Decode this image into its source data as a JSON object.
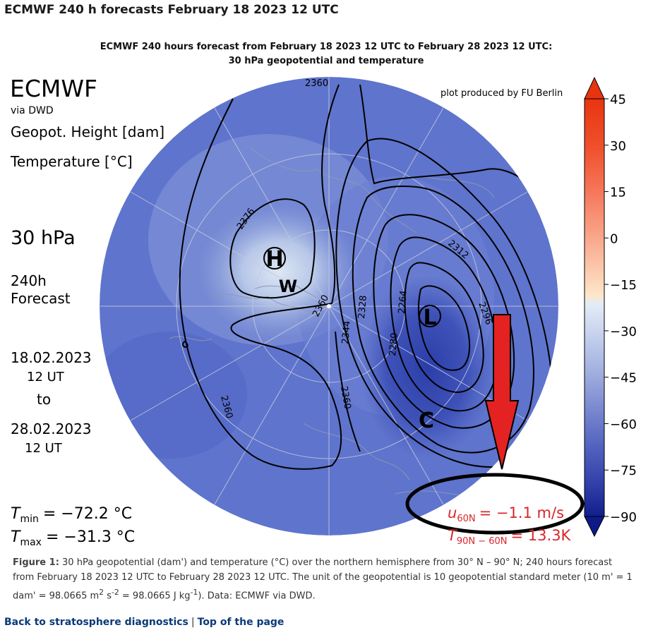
{
  "page_title": "ECMWF 240 h forecasts February 18 2023 12 UTC",
  "figure": {
    "subtitle_line1": "ECMWF 240 hours forecast from February 18 2023 12 UTC to February 28 2023 12 UTC:",
    "subtitle_line2": "30 hPa geopotential and temperature",
    "producer": "ECMWF",
    "via": "via DWD",
    "credit": "plot produced by FU Berlin",
    "var1": "Geopot. Height [dam]",
    "var2": "Temperature [°C]",
    "level": "30 hPa",
    "lead1": "240h",
    "lead2": "Forecast",
    "init_date": "18.02.2023",
    "init_time": "12 UT",
    "to": "to",
    "valid_date": "28.02.2023",
    "valid_time": "12 UT",
    "tmin_label": "T",
    "tmin_sub": "min",
    "tmin_value": "= −72.2 °C",
    "tmax_label": "T",
    "tmax_sub": "max",
    "tmax_value": "= −31.3 °C",
    "u60_label": "u",
    "u60_sub": "60N",
    "u60_value": "= −1.1 m/s",
    "dt_label": "T",
    "dt_sub": "90N − 60N",
    "dt_value": "= 13.3K",
    "high_marker": "H",
    "low_marker": "L",
    "warm_marker": "W",
    "cold_marker": "C",
    "contour_labels": [
      "2360",
      "2376",
      "2360",
      "2344",
      "2328",
      "2264",
      "2280",
      "2312",
      "2296",
      "2360",
      "2360"
    ],
    "colorbar_ticks": [
      "45",
      "30",
      "15",
      "0",
      "−15",
      "−30",
      "−45",
      "−60",
      "−75",
      "−90"
    ],
    "annotation_colors": {
      "arrow": "#e02020",
      "ellipse": "#000000",
      "wind_text": "#d9262b"
    }
  },
  "caption": {
    "label": "Figure 1:",
    "text1": " 30 hPa geopotential (dam') and temperature (°C) over the northern hemisphere from 30° N – 90° N; 240 hours forecast from February 18 2023 12 UTC to February 28 2023 12 UTC. The unit of the geopotential is 10 geopotential standard meter (10 m' = 1 dam' = 98.0665 m",
    "sup1": "2",
    "text2": " s",
    "sup2": "-2",
    "text3": " = 98.0665 J kg",
    "sup3": "-1",
    "text4": "). Data: ECMWF via DWD."
  },
  "footer": {
    "back_link": "Back to stratosphere diagnostics",
    "separator": "|",
    "top_link": "Top of the page"
  }
}
